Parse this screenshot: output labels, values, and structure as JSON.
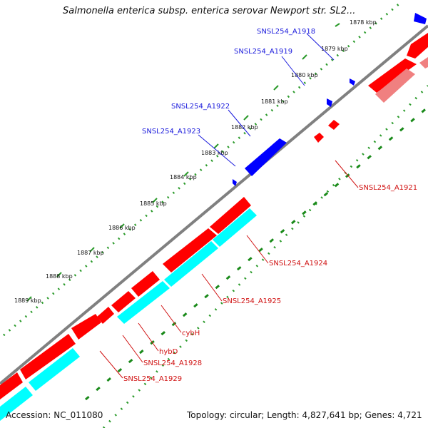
{
  "title": "Salmonella enterica subsp. enterica serovar Newport str. SL2...",
  "footer": {
    "accession": "Accession: NC_011080",
    "topology": "Topology: circular; Length: 4,827,641 bp; Genes: 4,721"
  },
  "ticks": [
    "1878 kbp",
    "1879 kbp",
    "1880 kbp",
    "1881 kbp",
    "1882 kbp",
    "1883 kbp",
    "1884 kbp",
    "1885 kbp",
    "1886 kbp",
    "1887 kbp",
    "1888 kbp",
    "1889 kbp"
  ],
  "gene_labels_forward": [
    "SNSL254_A1918",
    "SNSL254_A1919",
    "SNSL254_A1922",
    "SNSL254_A1923"
  ],
  "gene_labels_reverse": [
    "SNSL254_A1921",
    "SNSL254_A1924",
    "SNSL254_A1925",
    "cybH",
    "hybD",
    "SNSL254_A1928",
    "SNSL254_A1929"
  ],
  "colors": {
    "forward_gene": "#0000ff",
    "reverse_gene": "#ff0000",
    "reverse_gene_light": "#f08080",
    "cds": "#00ffff",
    "backbone": "#808080",
    "tick_major": "#009900",
    "tick_minor": "#33aa33",
    "label_forward": "#1a1adc",
    "label_reverse": "#d01010"
  }
}
